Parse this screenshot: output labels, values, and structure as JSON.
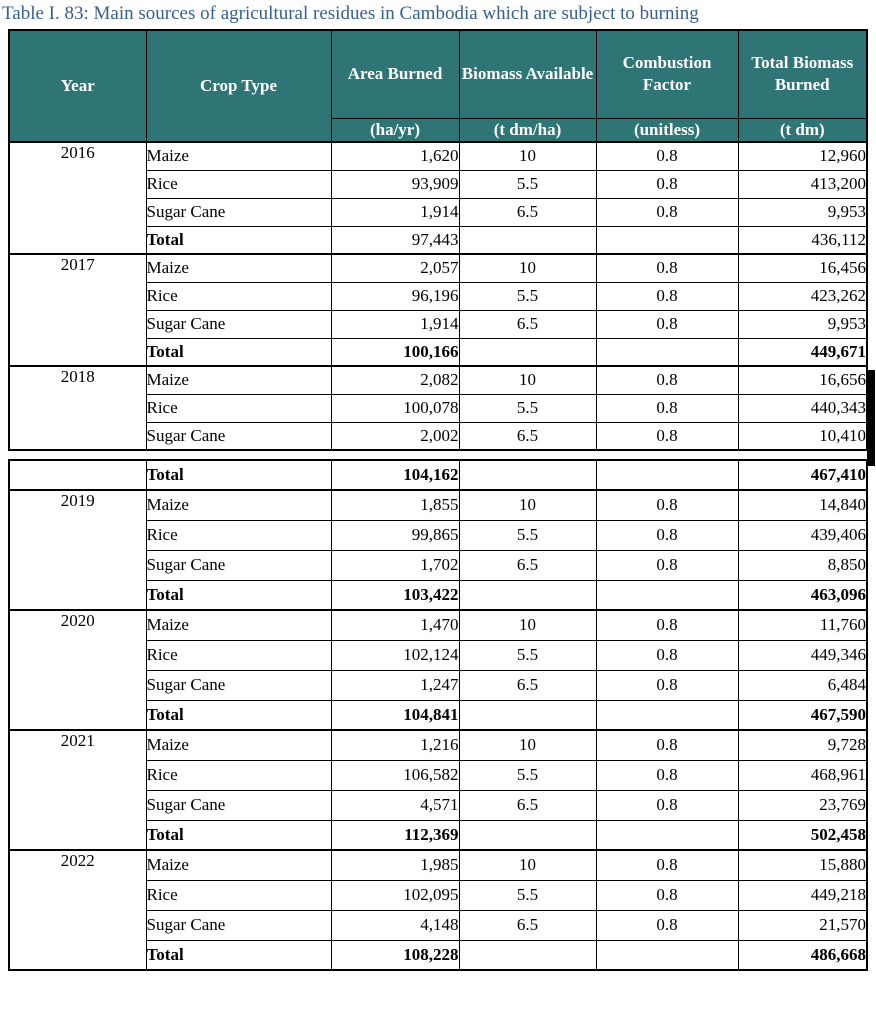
{
  "caption": "Table I. 83: Main sources of agricultural residues in Cambodia which are subject to burning",
  "colors": {
    "header_bg": "#2F7575",
    "caption_text": "#365F91",
    "border": "#000000"
  },
  "header": {
    "columns": [
      "Year",
      "Crop Type",
      "Area Burned",
      "Biomass Available",
      "Combustion Factor",
      "Total Biomass Burned"
    ],
    "units": [
      "(ha/yr)",
      "(t dm/ha)",
      "(unitless)",
      "(t dm)"
    ]
  },
  "chart_data": {
    "type": "table",
    "title": "Main sources of agricultural residues in Cambodia which are subject to burning",
    "columns": [
      "Year",
      "Crop Type",
      "Area Burned (ha/yr)",
      "Biomass Available (t dm/ha)",
      "Combustion Factor (unitless)",
      "Total Biomass Burned (t dm)"
    ]
  },
  "parts": [
    {
      "groups": [
        {
          "year": "2016",
          "bold_total_values": false,
          "rows": [
            {
              "crop": "Maize",
              "area": "1,620",
              "biomass": "10",
              "cf": "0.8",
              "total": "12,960"
            },
            {
              "crop": "Rice",
              "area": "93,909",
              "biomass": "5.5",
              "cf": "0.8",
              "total": "413,200"
            },
            {
              "crop": "Sugar Cane",
              "area": "1,914",
              "biomass": "6.5",
              "cf": "0.8",
              "total": "9,953"
            },
            {
              "crop": "Total",
              "is_total": true,
              "area": "97,443",
              "biomass": "",
              "cf": "",
              "total": "436,112"
            }
          ]
        },
        {
          "year": "2017",
          "bold_total_values": true,
          "rows": [
            {
              "crop": "Maize",
              "area": "2,057",
              "biomass": "10",
              "cf": "0.8",
              "total": "16,456"
            },
            {
              "crop": "Rice",
              "area": "96,196",
              "biomass": "5.5",
              "cf": "0.8",
              "total": "423,262"
            },
            {
              "crop": "Sugar Cane",
              "area": "1,914",
              "biomass": "6.5",
              "cf": "0.8",
              "total": "9,953"
            },
            {
              "crop": "Total",
              "is_total": true,
              "area": "100,166",
              "biomass": "",
              "cf": "",
              "total": "449,671"
            }
          ]
        },
        {
          "year": "2018",
          "bold_total_values": true,
          "rows": [
            {
              "crop": "Maize",
              "area": "2,082",
              "biomass": "10",
              "cf": "0.8",
              "total": "16,656"
            },
            {
              "crop": "Rice",
              "area": "100,078",
              "biomass": "5.5",
              "cf": "0.8",
              "total": "440,343"
            },
            {
              "crop": "Sugar Cane",
              "area": "2,002",
              "biomass": "6.5",
              "cf": "0.8",
              "total": "10,410"
            }
          ]
        }
      ]
    },
    {
      "groups": [
        {
          "year": "",
          "bold_total_values": true,
          "rows": [
            {
              "crop": "Total",
              "is_total": true,
              "area": "104,162",
              "biomass": "",
              "cf": "",
              "total": "467,410"
            }
          ]
        },
        {
          "year": "2019",
          "bold_total_values": true,
          "rows": [
            {
              "crop": "Maize",
              "area": "1,855",
              "biomass": "10",
              "cf": "0.8",
              "total": "14,840"
            },
            {
              "crop": "Rice",
              "area": "99,865",
              "biomass": "5.5",
              "cf": "0.8",
              "total": "439,406"
            },
            {
              "crop": "Sugar Cane",
              "area": "1,702",
              "biomass": "6.5",
              "cf": "0.8",
              "total": "8,850"
            },
            {
              "crop": "Total",
              "is_total": true,
              "area": "103,422",
              "biomass": "",
              "cf": "",
              "total": "463,096"
            }
          ]
        },
        {
          "year": "2020",
          "bold_total_values": true,
          "rows": [
            {
              "crop": "Maize",
              "area": "1,470",
              "biomass": "10",
              "cf": "0.8",
              "total": "11,760"
            },
            {
              "crop": "Rice",
              "area": "102,124",
              "biomass": "5.5",
              "cf": "0.8",
              "total": "449,346"
            },
            {
              "crop": "Sugar Cane",
              "area": "1,247",
              "biomass": "6.5",
              "cf": "0.8",
              "total": "6,484"
            },
            {
              "crop": "Total",
              "is_total": true,
              "area": "104,841",
              "biomass": "",
              "cf": "",
              "total": "467,590"
            }
          ]
        },
        {
          "year": "2021",
          "bold_total_values": true,
          "rows": [
            {
              "crop": "Maize",
              "area": "1,216",
              "biomass": "10",
              "cf": "0.8",
              "total": "9,728"
            },
            {
              "crop": "Rice",
              "area": "106,582",
              "biomass": "5.5",
              "cf": "0.8",
              "total": "468,961"
            },
            {
              "crop": "Sugar Cane",
              "area": "4,571",
              "biomass": "6.5",
              "cf": "0.8",
              "total": "23,769"
            },
            {
              "crop": "Total",
              "is_total": true,
              "area": "112,369",
              "biomass": "",
              "cf": "",
              "total": "502,458"
            }
          ]
        },
        {
          "year": "2022",
          "bold_total_values": true,
          "rows": [
            {
              "crop": "Maize",
              "area": "1,985",
              "biomass": "10",
              "cf": "0.8",
              "total": "15,880"
            },
            {
              "crop": "Rice",
              "area": "102,095",
              "biomass": "5.5",
              "cf": "0.8",
              "total": "449,218"
            },
            {
              "crop": "Sugar Cane",
              "area": "4,148",
              "biomass": "6.5",
              "cf": "0.8",
              "total": "21,570"
            },
            {
              "crop": "Total",
              "is_total": true,
              "area": "108,228",
              "biomass": "",
              "cf": "",
              "total": "486,668"
            }
          ]
        }
      ]
    }
  ]
}
